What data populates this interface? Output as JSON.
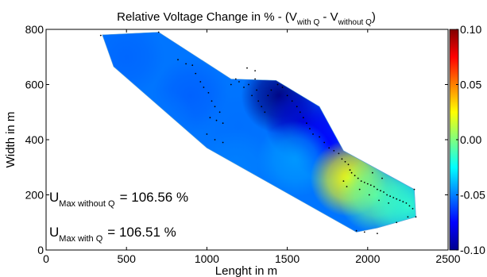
{
  "chart_data": {
    "type": "heatmap",
    "title": {
      "main": "Relative Voltage Change in % - (V",
      "sub1": "with Q",
      "mid": " - V",
      "sub2": "without Q",
      "end": ")"
    },
    "xlabel": "Lenght in m",
    "ylabel": "Width in m",
    "xlim": [
      0,
      2500
    ],
    "ylim": [
      0,
      800
    ],
    "x_ticks": [
      0,
      500,
      1000,
      1500,
      2000,
      2500
    ],
    "y_ticks": [
      0,
      200,
      400,
      600,
      800
    ],
    "grid": false,
    "colorbar": {
      "colormap": "jet",
      "range": [
        -0.1,
        0.1
      ],
      "tick_values": [
        0.1,
        0.05,
        0,
        -0.05,
        -0.1
      ],
      "tick_labels": [
        "0.10",
        "0.05",
        "0.00",
        "-0.05",
        "-0.10"
      ]
    },
    "annotations": [
      {
        "label_main": "U",
        "label_sub": "Max without Q",
        "value_text": "= 106.56 %"
      },
      {
        "label_main": "U",
        "label_sub": "Max with Q",
        "value_text": "= 106.51 %"
      }
    ],
    "field": {
      "region_polygon": [
        [
          350,
          780
        ],
        [
          700,
          790
        ],
        [
          1150,
          620
        ],
        [
          1430,
          615
        ],
        [
          1700,
          520
        ],
        [
          1850,
          360
        ],
        [
          2290,
          220
        ],
        [
          2300,
          120
        ],
        [
          2060,
          80
        ],
        [
          1930,
          65
        ],
        [
          1000,
          370
        ],
        [
          420,
          665
        ]
      ],
      "color_stops": [
        {
          "x": 500,
          "y": 700,
          "value": -0.055
        },
        {
          "x": 900,
          "y": 560,
          "value": -0.056
        },
        {
          "x": 700,
          "y": 450,
          "value": -0.052
        },
        {
          "x": 1200,
          "y": 450,
          "value": -0.053
        },
        {
          "x": 1180,
          "y": 300,
          "value": -0.05
        },
        {
          "x": 1450,
          "y": 560,
          "value": -0.1
        },
        {
          "x": 1600,
          "y": 460,
          "value": -0.085
        },
        {
          "x": 1750,
          "y": 390,
          "value": -0.075
        },
        {
          "x": 1550,
          "y": 330,
          "value": -0.045
        },
        {
          "x": 1880,
          "y": 260,
          "value": 0.025
        },
        {
          "x": 2050,
          "y": 200,
          "value": -0.005
        },
        {
          "x": 2250,
          "y": 160,
          "value": -0.015
        }
      ]
    },
    "points": [
      [
        340,
        778
      ],
      [
        700,
        790
      ],
      [
        820,
        690
      ],
      [
        870,
        675
      ],
      [
        910,
        670
      ],
      [
        930,
        640
      ],
      [
        960,
        610
      ],
      [
        980,
        590
      ],
      [
        1010,
        570
      ],
      [
        1030,
        540
      ],
      [
        1050,
        520
      ],
      [
        1080,
        500
      ],
      [
        1020,
        480
      ],
      [
        1060,
        470
      ],
      [
        1100,
        460
      ],
      [
        1150,
        600
      ],
      [
        1180,
        620
      ],
      [
        1200,
        610
      ],
      [
        1230,
        590
      ],
      [
        1260,
        600
      ],
      [
        1300,
        620
      ],
      [
        1310,
        580
      ],
      [
        1280,
        560
      ],
      [
        1320,
        540
      ],
      [
        1340,
        520
      ],
      [
        1360,
        500
      ],
      [
        1380,
        560
      ],
      [
        1400,
        580
      ],
      [
        1440,
        600
      ],
      [
        1470,
        590
      ],
      [
        1500,
        560
      ],
      [
        1530,
        540
      ],
      [
        1560,
        520
      ],
      [
        1580,
        500
      ],
      [
        1600,
        480
      ],
      [
        1620,
        460
      ],
      [
        1640,
        440
      ],
      [
        1660,
        420
      ],
      [
        1700,
        410
      ],
      [
        1730,
        390
      ],
      [
        1760,
        370
      ],
      [
        1790,
        360
      ],
      [
        1820,
        350
      ],
      [
        1840,
        330
      ],
      [
        1860,
        320
      ],
      [
        1880,
        310
      ],
      [
        1890,
        290
      ],
      [
        1900,
        280
      ],
      [
        1920,
        270
      ],
      [
        1940,
        260
      ],
      [
        1960,
        250
      ],
      [
        1980,
        245
      ],
      [
        2000,
        240
      ],
      [
        2020,
        235
      ],
      [
        2040,
        230
      ],
      [
        2060,
        220
      ],
      [
        2080,
        215
      ],
      [
        2100,
        210
      ],
      [
        2120,
        200
      ],
      [
        2140,
        195
      ],
      [
        2160,
        190
      ],
      [
        2180,
        185
      ],
      [
        2200,
        180
      ],
      [
        2220,
        175
      ],
      [
        2240,
        170
      ],
      [
        2260,
        160
      ],
      [
        2280,
        150
      ],
      [
        2300,
        120
      ],
      [
        2290,
        220
      ],
      [
        1930,
        70
      ],
      [
        1980,
        65
      ],
      [
        2060,
        60
      ],
      [
        2180,
        100
      ],
      [
        2250,
        120
      ],
      [
        1850,
        250
      ],
      [
        1870,
        230
      ],
      [
        1950,
        220
      ],
      [
        2010,
        200
      ],
      [
        2070,
        180
      ],
      [
        2130,
        170
      ],
      [
        2030,
        280
      ],
      [
        2090,
        260
      ],
      [
        1000,
        420
      ],
      [
        1050,
        400
      ],
      [
        1100,
        390
      ],
      [
        1250,
        660
      ],
      [
        1300,
        650
      ]
    ]
  }
}
